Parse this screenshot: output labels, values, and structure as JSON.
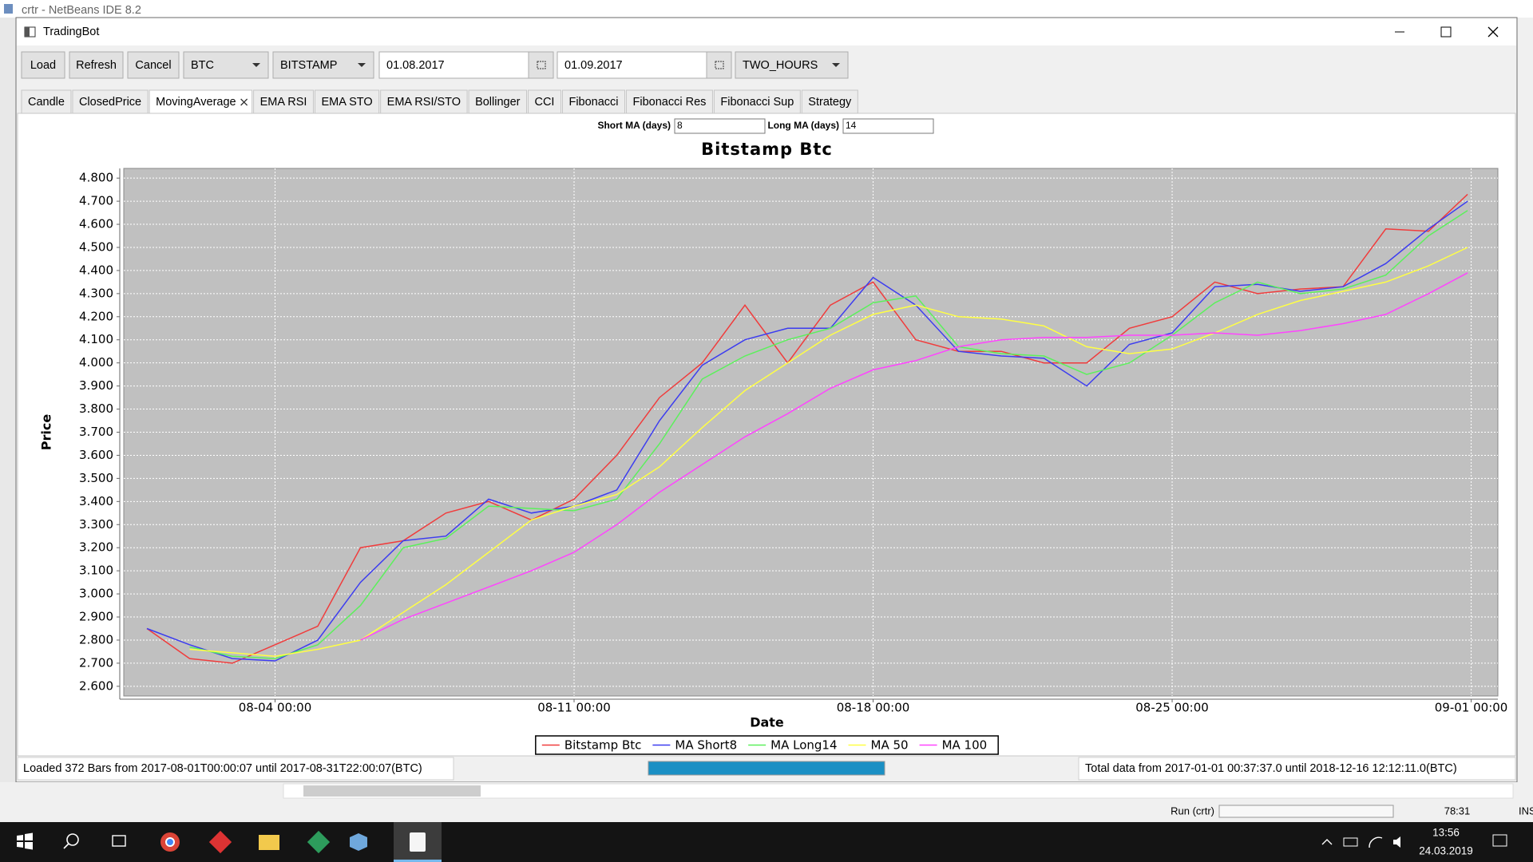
{
  "ide": {
    "title": "crtr - NetBeans IDE 8.2",
    "run_label": "Run (crtr)",
    "caret": "78:31",
    "mode": "INS"
  },
  "window": {
    "title": "TradingBot"
  },
  "toolbar": {
    "buttons": [
      "Load",
      "Refresh",
      "Cancel"
    ],
    "currency": "BTC",
    "exchange": "BITSTAMP",
    "from_date": "01.08.2017",
    "to_date": "01.09.2017",
    "interval": "TWO_HOURS"
  },
  "tabs": [
    "Candle",
    "ClosedPrice",
    "MovingAverage",
    "EMA RSI",
    "EMA STO",
    "EMA RSI/STO",
    "Bollinger",
    "CCI",
    "Fibonacci",
    "Fibonacci Res",
    "Fibonacci Sup",
    "Strategy"
  ],
  "active_tab": 2,
  "ma_settings": {
    "short_label": "Short MA (days)",
    "short_value": "8",
    "long_label": "Long MA (days)",
    "long_value": "14"
  },
  "chart_data": {
    "type": "line",
    "title": "Bitstamp Btc",
    "x_label": "Date",
    "y_label": "Price",
    "x": [
      "08-01 00:00",
      "08-02 00:00",
      "08-03 00:00",
      "08-04 00:00",
      "08-05 00:00",
      "08-06 00:00",
      "08-07 00:00",
      "08-08 00:00",
      "08-09 00:00",
      "08-10 00:00",
      "08-11 00:00",
      "08-12 00:00",
      "08-13 00:00",
      "08-14 00:00",
      "08-15 00:00",
      "08-16 00:00",
      "08-17 00:00",
      "08-18 00:00",
      "08-19 00:00",
      "08-20 00:00",
      "08-21 00:00",
      "08-22 00:00",
      "08-23 00:00",
      "08-24 00:00",
      "08-25 00:00",
      "08-26 00:00",
      "08-27 00:00",
      "08-28 00:00",
      "08-29 00:00",
      "08-30 00:00",
      "08-31 00:00",
      "08-31 22:00"
    ],
    "xlim": [
      "07-31 11:00",
      "09-01 15:00"
    ],
    "xticks": [
      "08-04 00:00",
      "08-11 00:00",
      "08-18 00:00",
      "08-25 00:00",
      "09-01 00:00"
    ],
    "ylim": [
      2558,
      4842
    ],
    "yticks": [
      {
        "value": 2600,
        "label": "2.600"
      },
      {
        "value": 2700,
        "label": "2.700"
      },
      {
        "value": 2800,
        "label": "2.800"
      },
      {
        "value": 2900,
        "label": "2.900"
      },
      {
        "value": 3000,
        "label": "3.000"
      },
      {
        "value": 3100,
        "label": "3.100"
      },
      {
        "value": 3200,
        "label": "3.200"
      },
      {
        "value": 3300,
        "label": "3.300"
      },
      {
        "value": 3400,
        "label": "3.400"
      },
      {
        "value": 3500,
        "label": "3.500"
      },
      {
        "value": 3600,
        "label": "3.600"
      },
      {
        "value": 3700,
        "label": "3.700"
      },
      {
        "value": 3800,
        "label": "3.800"
      },
      {
        "value": 3900,
        "label": "3.900"
      },
      {
        "value": 4000,
        "label": "4.000"
      },
      {
        "value": 4100,
        "label": "4.100"
      },
      {
        "value": 4200,
        "label": "4.200"
      },
      {
        "value": 4300,
        "label": "4.300"
      },
      {
        "value": 4400,
        "label": "4.400"
      },
      {
        "value": 4500,
        "label": "4.500"
      },
      {
        "value": 4600,
        "label": "4.600"
      },
      {
        "value": 4700,
        "label": "4.700"
      },
      {
        "value": 4800,
        "label": "4.800"
      }
    ],
    "grid": true,
    "plot_background": "#c0c0c0",
    "series": [
      {
        "name": "Bitstamp Btc",
        "color": "#f03c3c",
        "values": [
          2850,
          2720,
          2700,
          2780,
          2860,
          3200,
          3230,
          3350,
          3400,
          3320,
          3410,
          3600,
          3850,
          4000,
          4250,
          4000,
          4250,
          4350,
          4100,
          4050,
          4050,
          4000,
          4000,
          4150,
          4200,
          4350,
          4300,
          4320,
          4330,
          4580,
          4570,
          4730
        ]
      },
      {
        "name": "MA Short8",
        "color": "#3c3cf0",
        "values": [
          2850,
          2780,
          2720,
          2710,
          2800,
          3050,
          3230,
          3250,
          3410,
          3350,
          3380,
          3450,
          3750,
          3990,
          4100,
          4150,
          4150,
          4370,
          4250,
          4050,
          4030,
          4020,
          3900,
          4080,
          4130,
          4330,
          4340,
          4310,
          4330,
          4430,
          4580,
          4700
        ]
      },
      {
        "name": "MA Long14",
        "color": "#5cf05c",
        "values": [
          null,
          2770,
          2730,
          2720,
          2780,
          2950,
          3200,
          3240,
          3380,
          3370,
          3360,
          3410,
          3650,
          3930,
          4030,
          4100,
          4150,
          4260,
          4290,
          4070,
          4040,
          4030,
          3950,
          4000,
          4120,
          4260,
          4350,
          4300,
          4320,
          4380,
          4550,
          4660
        ]
      },
      {
        "name": "MA 50",
        "color": "#ffff44",
        "values": [
          null,
          2760,
          2745,
          2730,
          2760,
          2800,
          2920,
          3040,
          3180,
          3320,
          3380,
          3430,
          3550,
          3720,
          3880,
          4000,
          4120,
          4210,
          4250,
          4200,
          4190,
          4160,
          4070,
          4040,
          4060,
          4130,
          4210,
          4270,
          4310,
          4350,
          4420,
          4500
        ]
      },
      {
        "name": "MA 100",
        "color": "#ff44ff",
        "values": [
          null,
          null,
          null,
          null,
          null,
          2800,
          2890,
          2960,
          3030,
          3100,
          3180,
          3300,
          3440,
          3560,
          3680,
          3780,
          3890,
          3970,
          4010,
          4070,
          4100,
          4110,
          4110,
          4120,
          4120,
          4130,
          4120,
          4140,
          4170,
          4210,
          4300,
          4390
        ]
      }
    ]
  },
  "status": {
    "left": "Loaded 372 Bars from 2017-08-01T00:00:07 until 2017-08-31T22:00:07(BTC)",
    "right": "Total data from 2017-01-01 00:37:37.0 until 2018-12-16 12:12:11.0(BTC)"
  },
  "taskbar": {
    "time": "13:56",
    "date": "24.03.2019"
  }
}
